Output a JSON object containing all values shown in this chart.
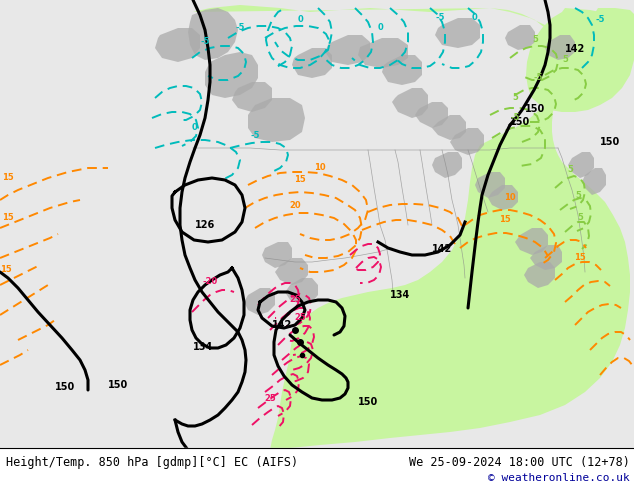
{
  "title_left": "Height/Temp. 850 hPa [gdmp][°C] EC (AIFS)",
  "title_right": "We 25-09-2024 18:00 UTC (12+78)",
  "copyright": "© weatheronline.co.uk",
  "bg_color": "#e8e8e8",
  "green_fill": "#c8f5a0",
  "gray_fill": "#aaaaaa",
  "title_fontsize": 8.5,
  "copyright_fontsize": 8,
  "copyright_color": "#000099",
  "black_contour_lw": 2.2,
  "temp_contour_lw": 1.4,
  "cyan_color": "#00BBBB",
  "green_color": "#88CC44",
  "orange_color": "#FF8800",
  "red_color": "#EE1166",
  "map_area": [
    0,
    42,
    634,
    450
  ]
}
